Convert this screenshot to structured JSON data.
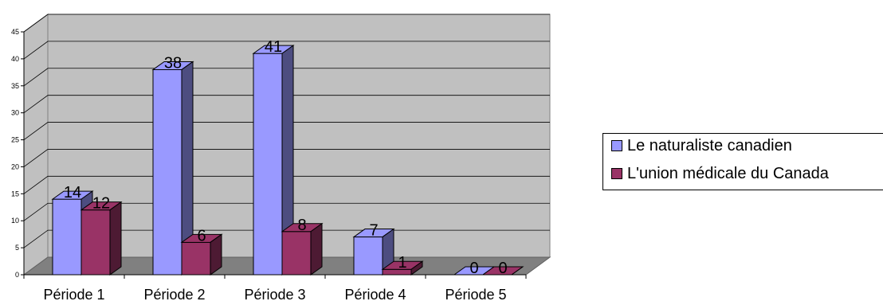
{
  "chart_data": {
    "type": "bar",
    "categories": [
      "Période 1",
      "Période 2",
      "Période 3",
      "Période 4",
      "Période 5"
    ],
    "series": [
      {
        "name": "Le naturaliste canadien",
        "values": [
          14,
          38,
          41,
          7,
          0
        ]
      },
      {
        "name": "L'union médicale du Canada",
        "values": [
          12,
          6,
          8,
          1,
          0
        ]
      }
    ],
    "ylim": [
      0,
      45
    ],
    "yticks": [
      0,
      5,
      10,
      15,
      20,
      25,
      30,
      35,
      40,
      45
    ],
    "grid": true,
    "legend_position": "right",
    "colors": {
      "series_1": "#9999FF",
      "series_2": "#993366",
      "wall": "#C0C0C0",
      "floor": "#808080"
    }
  }
}
